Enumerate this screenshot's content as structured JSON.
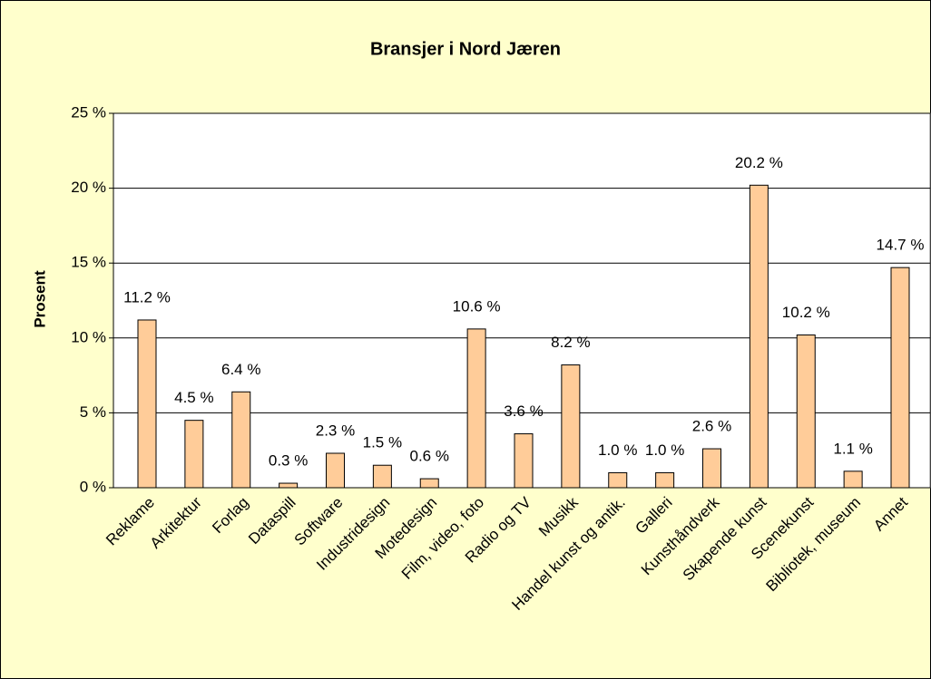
{
  "chart_data": {
    "type": "bar",
    "title": "Bransjer i Nord Jæren",
    "y_label": "Prosent",
    "categories": [
      "Reklame",
      "Arkitektur",
      "Forlag",
      "Dataspill",
      "Software",
      "Industridesign",
      "Motedesign",
      "Film, video, foto",
      "Radio og TV",
      "Musikk",
      "Handel kunst og antik.",
      "Galleri",
      "Kunsthåndverk",
      "Skapende kunst",
      "Scenekunst",
      "Bibliotek, museum",
      "Annet"
    ],
    "values": [
      11.2,
      4.5,
      6.4,
      0.3,
      2.3,
      1.5,
      0.6,
      10.6,
      3.6,
      8.2,
      1.0,
      1.0,
      2.6,
      20.2,
      10.2,
      1.1,
      14.7
    ],
    "value_labels": [
      "11.2 %",
      "4.5 %",
      "6.4 %",
      "0.3 %",
      "2.3 %",
      "1.5 %",
      "0.6 %",
      "10.6 %",
      "3.6 %",
      "8.2 %",
      "1.0 %",
      "1.0 %",
      "2.6 %",
      "20.2 %",
      "10.2 %",
      "1.1 %",
      "14.7 %"
    ],
    "color": "#ffcc99",
    "ylim": [
      0,
      25
    ],
    "yticks": [
      {
        "value": 0,
        "label": "0 %"
      },
      {
        "value": 5,
        "label": "5 %"
      },
      {
        "value": 10,
        "label": "10 %"
      },
      {
        "value": 15,
        "label": "15 %"
      },
      {
        "value": 20,
        "label": "20 %"
      },
      {
        "value": 25,
        "label": "25 %"
      }
    ],
    "grid": true
  }
}
